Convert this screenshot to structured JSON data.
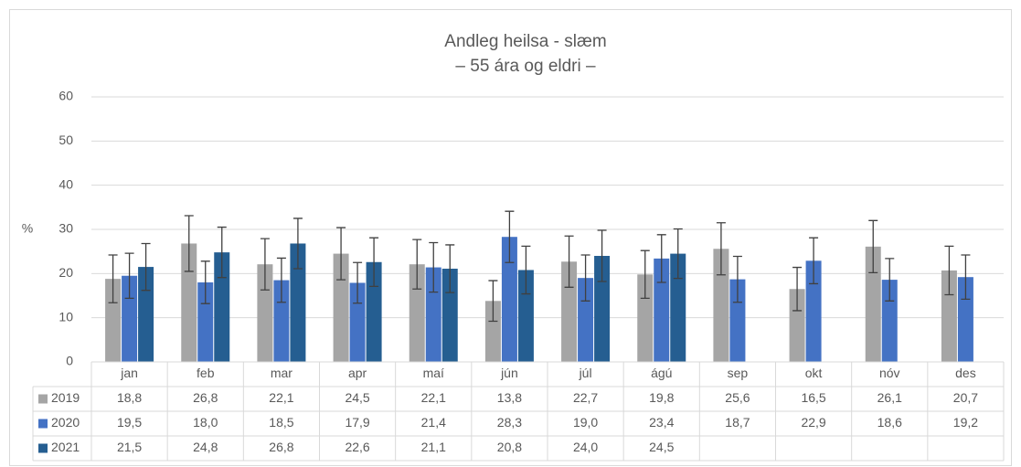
{
  "chart_data": {
    "type": "bar",
    "title": "Andleg heilsa - slæm",
    "subtitle": "– 55 ára og eldri –",
    "y_label": "%",
    "categories": [
      "jan",
      "feb",
      "mar",
      "apr",
      "maí",
      "jún",
      "júl",
      "ágú",
      "sep",
      "okt",
      "nóv",
      "des"
    ],
    "series": [
      {
        "name": "2019",
        "color": "#a5a5a5",
        "values": [
          18.8,
          26.8,
          22.1,
          24.5,
          22.1,
          13.8,
          22.7,
          19.8,
          25.6,
          16.5,
          26.1,
          20.7
        ],
        "value_labels": [
          "18,8",
          "26,8",
          "22,1",
          "24,5",
          "22,1",
          "13,8",
          "22,7",
          "19,8",
          "25,6",
          "16,5",
          "26,1",
          "20,7"
        ],
        "errors": [
          5.4,
          6.3,
          5.8,
          5.9,
          5.6,
          4.6,
          5.8,
          5.4,
          5.9,
          4.9,
          5.9,
          5.5
        ]
      },
      {
        "name": "2020",
        "color": "#4472c4",
        "values": [
          19.5,
          18.0,
          18.5,
          17.9,
          21.4,
          28.3,
          19.0,
          23.4,
          18.7,
          22.9,
          18.6,
          19.2
        ],
        "value_labels": [
          "19,5",
          "18,0",
          "18,5",
          "17,9",
          "21,4",
          "28,3",
          "19,0",
          "23,4",
          "18,7",
          "22,9",
          "18,6",
          "19,2"
        ],
        "errors": [
          5.1,
          4.8,
          5.0,
          4.6,
          5.6,
          5.8,
          5.2,
          5.4,
          5.2,
          5.2,
          4.8,
          5.0
        ]
      },
      {
        "name": "2021",
        "color": "#255e91",
        "values": [
          21.5,
          24.8,
          26.8,
          22.6,
          21.1,
          20.8,
          24.0,
          24.5,
          null,
          null,
          null,
          null
        ],
        "value_labels": [
          "21,5",
          "24,8",
          "26,8",
          "22,6",
          "21,1",
          "20,8",
          "24,0",
          "24,5",
          null,
          null,
          null,
          null
        ],
        "errors": [
          5.3,
          5.7,
          5.7,
          5.5,
          5.4,
          5.4,
          5.8,
          5.6,
          null,
          null,
          null,
          null
        ]
      }
    ],
    "ylim": [
      0,
      60
    ],
    "yticks": [
      0,
      10,
      20,
      30,
      40,
      50,
      60
    ],
    "grid": true
  }
}
